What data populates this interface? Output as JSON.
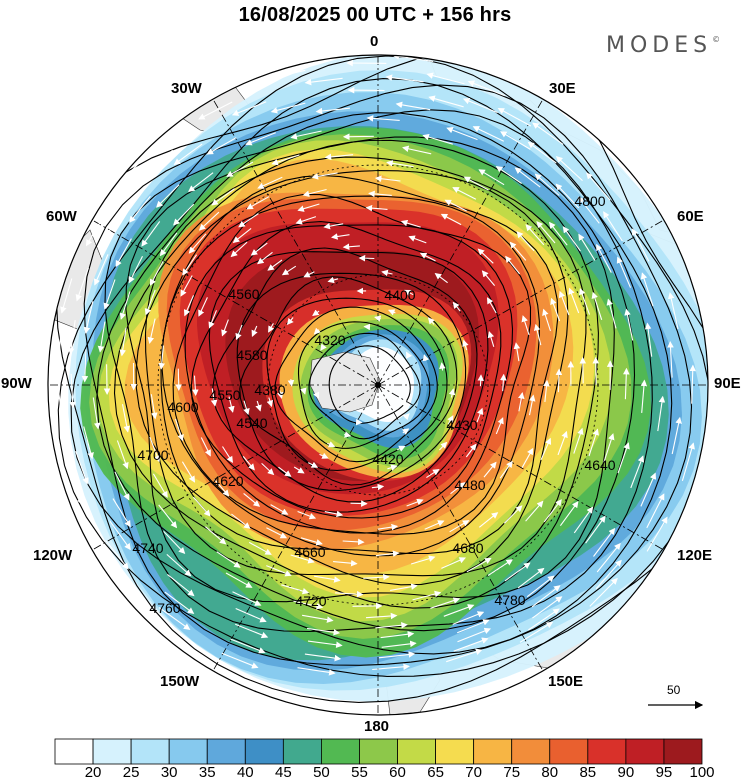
{
  "header": {
    "title": "16/08/2025  00 UTC  + 156 hrs",
    "brand": "MODES",
    "brand_mark": "©"
  },
  "map": {
    "projection": "north-polar-stereographic",
    "longitude_labels": [
      "0",
      "30E",
      "60E",
      "90E",
      "120E",
      "150E",
      "180",
      "150W",
      "120W",
      "90W",
      "60W",
      "30W"
    ],
    "contour_labels": [
      "4320",
      "4380",
      "4400",
      "4420",
      "4430",
      "4480",
      "4540",
      "4550",
      "4560",
      "4580",
      "4600",
      "4620",
      "4640",
      "4660",
      "4680",
      "4700",
      "4720",
      "4740",
      "4760",
      "4780",
      "4800"
    ],
    "vector_reference": "50",
    "colors": {
      "land": "#e9e9e9",
      "ocean": "#ffffff",
      "contour": "#000000",
      "vector": "#ffffff"
    }
  },
  "colorbar": {
    "ticks": [
      "20",
      "25",
      "30",
      "35",
      "40",
      "45",
      "50",
      "55",
      "60",
      "65",
      "70",
      "75",
      "80",
      "85",
      "90",
      "95",
      "100"
    ],
    "colors": [
      "#ffffff",
      "#d6f2fd",
      "#b3e4f9",
      "#86c9ee",
      "#5fa8dc",
      "#3e8fc6",
      "#41a98e",
      "#52b952",
      "#8dc84a",
      "#c3da47",
      "#f5dc4f",
      "#f7b544",
      "#f28d3a",
      "#e9602f",
      "#d9312a",
      "#bf1f25",
      "#9d1a1e"
    ]
  }
}
